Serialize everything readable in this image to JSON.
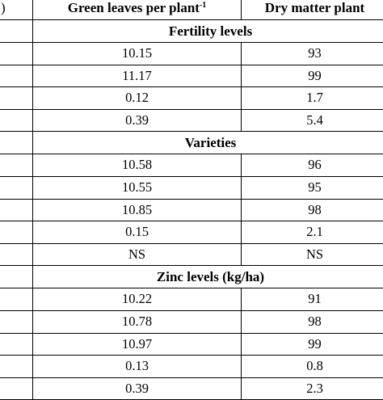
{
  "header": {
    "col0": ")",
    "col1": "Green leaves per plant",
    "col1_sup": "-1",
    "col2": "Dry matter plant"
  },
  "sections": [
    {
      "title": "Fertility levels",
      "rows": [
        [
          "10.15",
          "93"
        ],
        [
          "11.17",
          "99"
        ],
        [
          "0.12",
          "1.7"
        ],
        [
          "0.39",
          "5.4"
        ]
      ]
    },
    {
      "title": "Varieties",
      "rows": [
        [
          "10.58",
          "96"
        ],
        [
          "10.55",
          "95"
        ],
        [
          "10.85",
          "98"
        ],
        [
          "0.15",
          "2.1"
        ],
        [
          "NS",
          "NS"
        ]
      ]
    },
    {
      "title": "Zinc levels (kg/ha)",
      "rows": [
        [
          "10.22",
          "91"
        ],
        [
          "10.78",
          "98"
        ],
        [
          "10.97",
          "99"
        ],
        [
          "0.13",
          "0.8"
        ],
        [
          "0.39",
          "2.3"
        ]
      ]
    }
  ]
}
